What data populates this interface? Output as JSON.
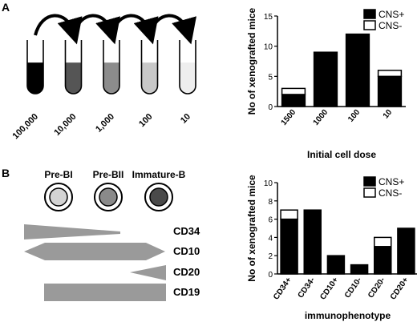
{
  "panel_a": {
    "label": "A",
    "tubes": [
      {
        "dilution": "100,000",
        "fill_fraction": 0.58,
        "color": "#000000"
      },
      {
        "dilution": "10,000",
        "fill_fraction": 0.58,
        "color": "#555555"
      },
      {
        "dilution": "1,000",
        "fill_fraction": 0.58,
        "color": "#8c8c8c"
      },
      {
        "dilution": "100",
        "fill_fraction": 0.58,
        "color": "#c8c8c8"
      },
      {
        "dilution": "10",
        "fill_fraction": 0.58,
        "color": "#eeeeee"
      }
    ]
  },
  "panel_b": {
    "label": "B",
    "cells": [
      {
        "name": "Pre-BI",
        "color": "#d4d4d4"
      },
      {
        "name": "Pre-BII",
        "color": "#8a8a8a"
      },
      {
        "name": "Immature-B",
        "color": "#4a4a4a"
      }
    ],
    "markers": [
      {
        "name": "CD34",
        "shape": "decreasing"
      },
      {
        "name": "CD10",
        "shape": "rise-plateau-fall"
      },
      {
        "name": "CD20",
        "shape": "increasing"
      },
      {
        "name": "CD19",
        "shape": "constant"
      }
    ],
    "marker_color": "#9a9a9a"
  },
  "chart_data": [
    {
      "type": "bar",
      "stacked": true,
      "ylabel": "No of xenografted mice",
      "xlabel": "Initial cell dose",
      "categories": [
        "1500",
        "1000",
        "100",
        "10"
      ],
      "series": [
        {
          "name": "CNS+",
          "values": [
            2,
            9,
            12,
            5
          ],
          "color": "#000000"
        },
        {
          "name": "CNS-",
          "values": [
            1,
            0,
            0,
            1
          ],
          "color": "#ffffff"
        }
      ],
      "ylim": [
        0,
        15
      ],
      "yticks": [
        "0",
        "5",
        "10",
        "15"
      ],
      "legend": "top-right"
    },
    {
      "type": "bar",
      "stacked": true,
      "ylabel": "No of xenografted mice",
      "xlabel": "immunophenotype",
      "categories": [
        "CD34+",
        "CD34-",
        "CD10+",
        "CD10-",
        "CD20-",
        "CD20+"
      ],
      "series": [
        {
          "name": "CNS+",
          "values": [
            6,
            7,
            2,
            1,
            3,
            5
          ],
          "color": "#000000"
        },
        {
          "name": "CNS-",
          "values": [
            1,
            0,
            0,
            0,
            1,
            0
          ],
          "color": "#ffffff"
        }
      ],
      "ylim": [
        0,
        10
      ],
      "yticks": [
        "0",
        "2",
        "4",
        "6",
        "8",
        "10"
      ],
      "legend": "top-right"
    }
  ]
}
